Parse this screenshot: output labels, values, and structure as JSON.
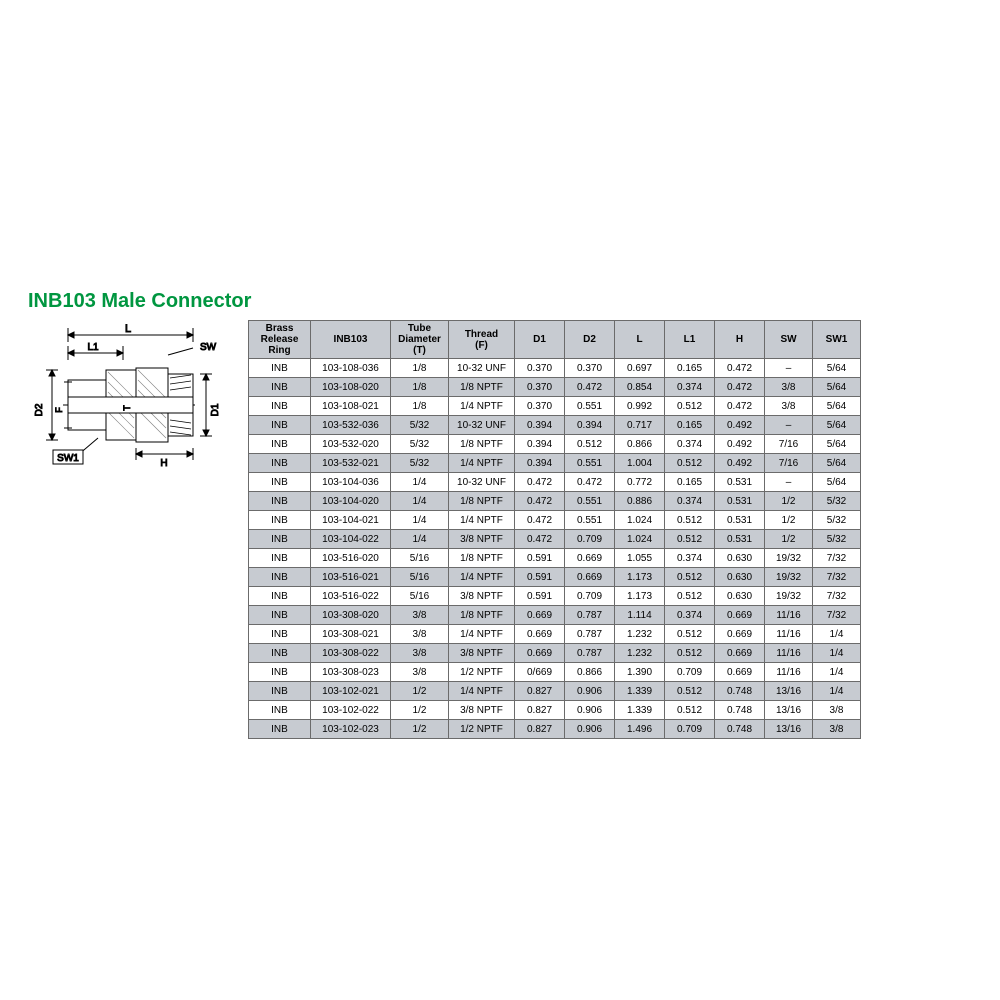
{
  "title": "INB103 Male Connector",
  "title_color": "#009640",
  "diagram": {
    "labels": {
      "L": "L",
      "L1": "L1",
      "SW": "SW",
      "D1": "D1",
      "D2": "D2",
      "F": "F",
      "T": "T",
      "SW1": "SW1",
      "H": "H"
    },
    "stroke": "#000000",
    "fill_body": "#ffffff",
    "hatch": "#808080"
  },
  "table": {
    "header_bg": "#c7cbd1",
    "row_alt_bg": "#c7cbd1",
    "row_bg": "#ffffff",
    "border_color": "#6b6b6b",
    "font_size": 10,
    "columns": [
      {
        "key": "brr",
        "label": "Brass\nRelease Ring",
        "class": "c0"
      },
      {
        "key": "inb",
        "label": "INB103",
        "class": "c1"
      },
      {
        "key": "t",
        "label": "Tube\nDiameter\n(T)",
        "class": "c2"
      },
      {
        "key": "f",
        "label": "Thread\n(F)",
        "class": "c3"
      },
      {
        "key": "d1",
        "label": "D1",
        "class": "cN"
      },
      {
        "key": "d2",
        "label": "D2",
        "class": "cN"
      },
      {
        "key": "l",
        "label": "L",
        "class": "cN"
      },
      {
        "key": "l1",
        "label": "L1",
        "class": "cN"
      },
      {
        "key": "h",
        "label": "H",
        "class": "cN"
      },
      {
        "key": "sw",
        "label": "SW",
        "class": "cSW"
      },
      {
        "key": "sw1",
        "label": "SW1",
        "class": "cSW"
      }
    ],
    "rows": [
      [
        "INB",
        "103-108-036",
        "1/8",
        "10-32 UNF",
        "0.370",
        "0.370",
        "0.697",
        "0.165",
        "0.472",
        "–",
        "5/64"
      ],
      [
        "INB",
        "103-108-020",
        "1/8",
        "1/8 NPTF",
        "0.370",
        "0.472",
        "0.854",
        "0.374",
        "0.472",
        "3/8",
        "5/64"
      ],
      [
        "INB",
        "103-108-021",
        "1/8",
        "1/4 NPTF",
        "0.370",
        "0.551",
        "0.992",
        "0.512",
        "0.472",
        "3/8",
        "5/64"
      ],
      [
        "INB",
        "103-532-036",
        "5/32",
        "10-32 UNF",
        "0.394",
        "0.394",
        "0.717",
        "0.165",
        "0.492",
        "–",
        "5/64"
      ],
      [
        "INB",
        "103-532-020",
        "5/32",
        "1/8 NPTF",
        "0.394",
        "0.512",
        "0.866",
        "0.374",
        "0.492",
        "7/16",
        "5/64"
      ],
      [
        "INB",
        "103-532-021",
        "5/32",
        "1/4 NPTF",
        "0.394",
        "0.551",
        "1.004",
        "0.512",
        "0.492",
        "7/16",
        "5/64"
      ],
      [
        "INB",
        "103-104-036",
        "1/4",
        "10-32 UNF",
        "0.472",
        "0.472",
        "0.772",
        "0.165",
        "0.531",
        "–",
        "5/64"
      ],
      [
        "INB",
        "103-104-020",
        "1/4",
        "1/8 NPTF",
        "0.472",
        "0.551",
        "0.886",
        "0.374",
        "0.531",
        "1/2",
        "5/32"
      ],
      [
        "INB",
        "103-104-021",
        "1/4",
        "1/4 NPTF",
        "0.472",
        "0.551",
        "1.024",
        "0.512",
        "0.531",
        "1/2",
        "5/32"
      ],
      [
        "INB",
        "103-104-022",
        "1/4",
        "3/8 NPTF",
        "0.472",
        "0.709",
        "1.024",
        "0.512",
        "0.531",
        "1/2",
        "5/32"
      ],
      [
        "INB",
        "103-516-020",
        "5/16",
        "1/8 NPTF",
        "0.591",
        "0.669",
        "1.055",
        "0.374",
        "0.630",
        "19/32",
        "7/32"
      ],
      [
        "INB",
        "103-516-021",
        "5/16",
        "1/4 NPTF",
        "0.591",
        "0.669",
        "1.173",
        "0.512",
        "0.630",
        "19/32",
        "7/32"
      ],
      [
        "INB",
        "103-516-022",
        "5/16",
        "3/8 NPTF",
        "0.591",
        "0.709",
        "1.173",
        "0.512",
        "0.630",
        "19/32",
        "7/32"
      ],
      [
        "INB",
        "103-308-020",
        "3/8",
        "1/8 NPTF",
        "0.669",
        "0.787",
        "1.114",
        "0.374",
        "0.669",
        "11/16",
        "7/32"
      ],
      [
        "INB",
        "103-308-021",
        "3/8",
        "1/4 NPTF",
        "0.669",
        "0.787",
        "1.232",
        "0.512",
        "0.669",
        "11/16",
        "1/4"
      ],
      [
        "INB",
        "103-308-022",
        "3/8",
        "3/8 NPTF",
        "0.669",
        "0.787",
        "1.232",
        "0.512",
        "0.669",
        "11/16",
        "1/4"
      ],
      [
        "INB",
        "103-308-023",
        "3/8",
        "1/2 NPTF",
        "0/669",
        "0.866",
        "1.390",
        "0.709",
        "0.669",
        "11/16",
        "1/4"
      ],
      [
        "INB",
        "103-102-021",
        "1/2",
        "1/4 NPTF",
        "0.827",
        "0.906",
        "1.339",
        "0.512",
        "0.748",
        "13/16",
        "1/4"
      ],
      [
        "INB",
        "103-102-022",
        "1/2",
        "3/8 NPTF",
        "0.827",
        "0.906",
        "1.339",
        "0.512",
        "0.748",
        "13/16",
        "3/8"
      ],
      [
        "INB",
        "103-102-023",
        "1/2",
        "1/2 NPTF",
        "0.827",
        "0.906",
        "1.496",
        "0.709",
        "0.748",
        "13/16",
        "3/8"
      ]
    ]
  }
}
